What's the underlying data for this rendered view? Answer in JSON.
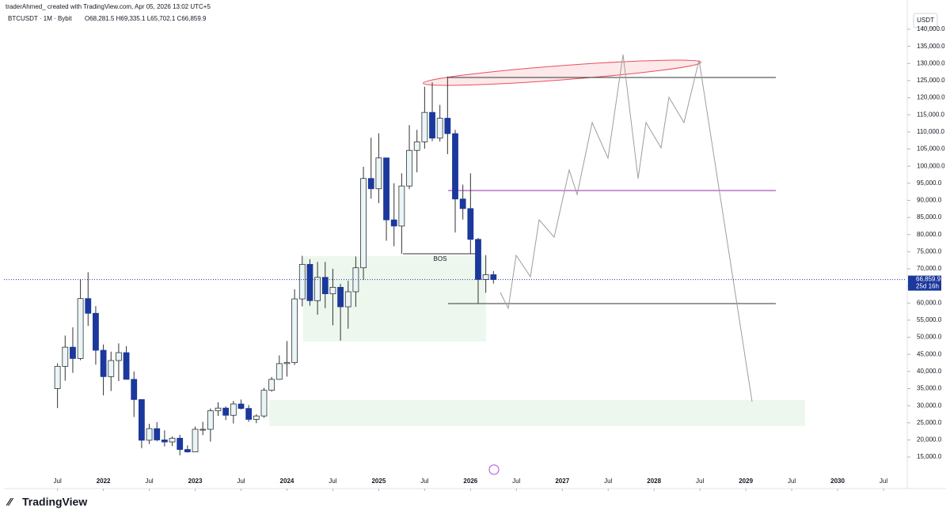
{
  "chart_data": {
    "type": "candlestick",
    "subtitle": "traderAhmed_ created with TradingView.com, Apr 05, 2026 13:02 UTC+5",
    "title": "BTCUSDT · 1M · Bybit",
    "ohlc_label": "O68,281.5 H69,335.1 L65,702.1 C66,859.9",
    "currency": "USDT",
    "brand": "TradingView",
    "annotations": [
      "BOS"
    ],
    "up_color": "#eaf5f7",
    "down_color": "#1b389c",
    "wick_color": "#333333",
    "x": [
      "2021-07",
      "2021-08",
      "2021-09",
      "2021-10",
      "2021-11",
      "2021-12",
      "2022-01",
      "2022-02",
      "2022-03",
      "2022-04",
      "2022-05",
      "2022-06",
      "2022-07",
      "2022-08",
      "2022-09",
      "2022-10",
      "2022-11",
      "2022-12",
      "2023-01",
      "2023-02",
      "2023-03",
      "2023-04",
      "2023-05",
      "2023-06",
      "2023-07",
      "2023-08",
      "2023-09",
      "2023-10",
      "2023-11",
      "2023-12",
      "2024-01",
      "2024-02",
      "2024-03",
      "2024-04",
      "2024-05",
      "2024-06",
      "2024-07",
      "2024-08",
      "2024-09",
      "2024-10",
      "2024-11",
      "2024-12",
      "2025-01",
      "2025-02",
      "2025-03",
      "2025-04",
      "2025-05",
      "2025-06",
      "2025-07",
      "2025-08",
      "2025-09",
      "2025-10",
      "2025-11",
      "2025-12",
      "2026-01",
      "2026-02",
      "2026-03",
      "2026-04"
    ],
    "open": [
      35000,
      41500,
      47100,
      43800,
      61300,
      57000,
      46200,
      38500,
      43200,
      45500,
      37700,
      31800,
      19900,
      23300,
      20000,
      19400,
      20500,
      17200,
      16500,
      23100,
      23100,
      28500,
      29300,
      27200,
      30500,
      29200,
      26000,
      27000,
      34500,
      37700,
      42300,
      42600,
      61200,
      71300,
      60700,
      67500,
      62700,
      64600,
      58900,
      63300,
      70300,
      96400,
      93400,
      102400,
      84300,
      82500,
      94200,
      104600,
      107100,
      115700,
      108200,
      114000,
      109500,
      90400,
      87600,
      78600,
      66900,
      68281.5
    ],
    "high": [
      42400,
      50500,
      52900,
      67000,
      69000,
      59100,
      47900,
      45800,
      48200,
      47400,
      40000,
      31900,
      24700,
      25200,
      22800,
      21000,
      21500,
      18400,
      23900,
      25300,
      29200,
      31000,
      29800,
      31400,
      31800,
      30200,
      27500,
      35200,
      38400,
      44700,
      48900,
      64000,
      73800,
      72800,
      72000,
      72000,
      70000,
      65600,
      66500,
      73600,
      99800,
      108300,
      109600,
      102500,
      95000,
      97900,
      112000,
      110600,
      123200,
      124500,
      117900,
      126200,
      110600,
      94600,
      97900,
      79000,
      74000,
      69335.1
    ],
    "low": [
      29300,
      37300,
      39600,
      43300,
      53300,
      42000,
      33000,
      34300,
      37200,
      37700,
      26700,
      17600,
      18800,
      19600,
      18100,
      18200,
      15500,
      16300,
      16500,
      21400,
      19500,
      27000,
      25800,
      24800,
      28900,
      25300,
      24900,
      26500,
      34100,
      37600,
      38500,
      41900,
      59000,
      59200,
      56600,
      58500,
      53500,
      49000,
      52500,
      58900,
      66800,
      90500,
      89200,
      78200,
      76600,
      74400,
      93300,
      98200,
      105100,
      107300,
      107200,
      103500,
      80600,
      84400,
      74500,
      60000,
      63000,
      65702.1
    ],
    "close": [
      41500,
      47100,
      43800,
      61300,
      57000,
      46200,
      38500,
      43200,
      45500,
      37700,
      31800,
      19900,
      23300,
      20000,
      19400,
      20500,
      17200,
      16500,
      23100,
      23100,
      28500,
      29300,
      27200,
      30500,
      29200,
      26000,
      27000,
      34500,
      37700,
      42300,
      42600,
      61200,
      71300,
      60700,
      67500,
      62700,
      64600,
      58900,
      63300,
      70300,
      96400,
      93400,
      102400,
      84300,
      82500,
      94200,
      104600,
      107100,
      115700,
      108200,
      114000,
      109500,
      90400,
      87600,
      78600,
      66900,
      68281.5,
      66859.9
    ],
    "last_price": {
      "value": 66859.9,
      "label": "66,859.9"
    },
    "countdown": "25d 16h",
    "xlim": [
      "2020-12",
      "2030-10"
    ],
    "xticks": [
      {
        "value": "2021-07",
        "label": "Jul"
      },
      {
        "value": "2022-01",
        "label": "2022"
      },
      {
        "value": "2022-07",
        "label": "Jul"
      },
      {
        "value": "2023-01",
        "label": "2023"
      },
      {
        "value": "2023-07",
        "label": "Jul"
      },
      {
        "value": "2024-01",
        "label": "2024"
      },
      {
        "value": "2024-07",
        "label": "Jul"
      },
      {
        "value": "2025-01",
        "label": "2025"
      },
      {
        "value": "2025-07",
        "label": "Jul"
      },
      {
        "value": "2026-01",
        "label": "2026"
      },
      {
        "value": "2026-07",
        "label": "Jul"
      },
      {
        "value": "2027-01",
        "label": "2027"
      },
      {
        "value": "2027-07",
        "label": "Jul"
      },
      {
        "value": "2028-01",
        "label": "2028"
      },
      {
        "value": "2028-07",
        "label": "Jul"
      },
      {
        "value": "2029-01",
        "label": "2029"
      },
      {
        "value": "2029-07",
        "label": "Jul"
      },
      {
        "value": "2030-01",
        "label": "2030"
      },
      {
        "value": "2030-07",
        "label": "Jul"
      }
    ],
    "ylim": [
      10400,
      146700
    ],
    "yticks": [
      {
        "value": 15000,
        "label": "15,000.0"
      },
      {
        "value": 20000,
        "label": "20,000.0"
      },
      {
        "value": 25000,
        "label": "25,000.0"
      },
      {
        "value": 30000,
        "label": "30,000.0"
      },
      {
        "value": 35000,
        "label": "35,000.0"
      },
      {
        "value": 40000,
        "label": "40,000.0"
      },
      {
        "value": 45000,
        "label": "45,000.0"
      },
      {
        "value": 50000,
        "label": "50,000.0"
      },
      {
        "value": 55000,
        "label": "55,000.0"
      },
      {
        "value": 60000,
        "label": "60,000.0"
      },
      {
        "value": 65000,
        "label": "65,000.0"
      },
      {
        "value": 70000,
        "label": "70,000.0"
      },
      {
        "value": 75000,
        "label": "75,000.0"
      },
      {
        "value": 80000,
        "label": "80,000.0"
      },
      {
        "value": 85000,
        "label": "85,000.0"
      },
      {
        "value": 90000,
        "label": "90,000.0"
      },
      {
        "value": 95000,
        "label": "95,000.0"
      },
      {
        "value": 100000,
        "label": "100,000.0"
      },
      {
        "value": 105000,
        "label": "105,000.0"
      },
      {
        "value": 110000,
        "label": "110,000.0"
      },
      {
        "value": 115000,
        "label": "115,000.0"
      },
      {
        "value": 120000,
        "label": "120,000.0"
      },
      {
        "value": 125000,
        "label": "125,000.0"
      },
      {
        "value": 130000,
        "label": "130,000.0"
      },
      {
        "value": 135000,
        "label": "135,000.0"
      },
      {
        "value": 140000,
        "label": "140,000.0"
      }
    ],
    "grid": false
  }
}
